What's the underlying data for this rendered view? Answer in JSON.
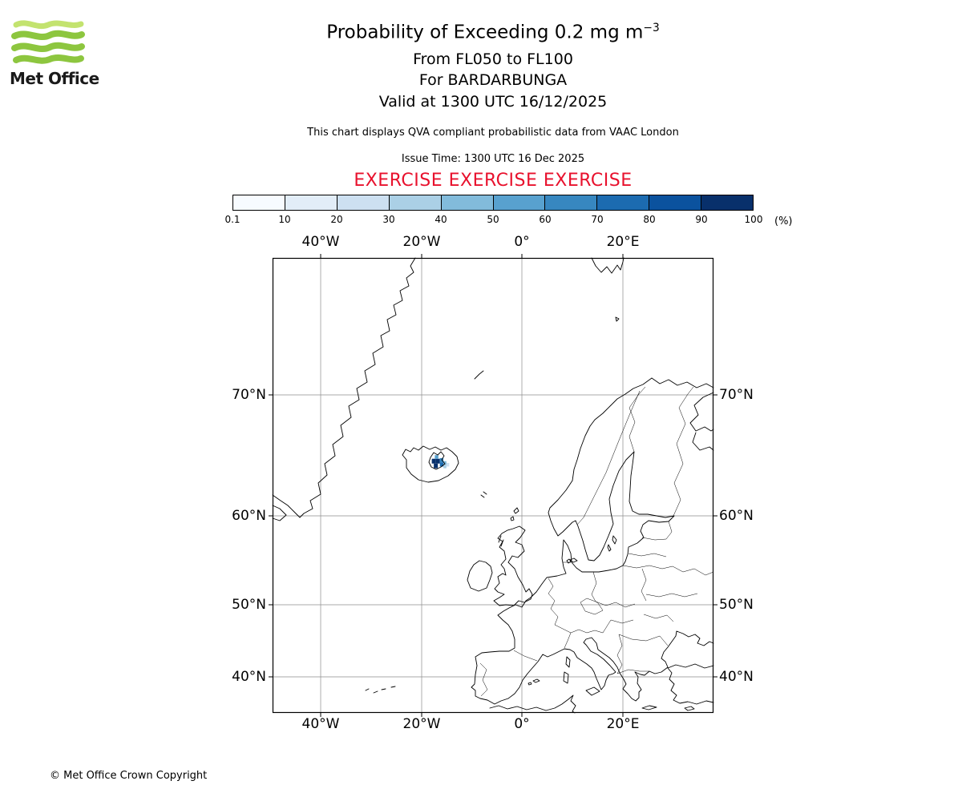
{
  "colors": {
    "logo_green": "#8dc63f",
    "logo_green_light": "#c3e36f",
    "exercise_red": "#e8112d",
    "coastline": "#000000",
    "grid": "#8c8c8c"
  },
  "logo": {
    "text": "Met Office"
  },
  "header": {
    "title_main": "Probability of Exceeding 0.2 mg m",
    "title_sup": "−3",
    "line_flight_levels": "From FL050 to FL100",
    "line_volcano": "For BARDARBUNGA",
    "line_valid": "Valid at 1300 UTC 16/12/2025",
    "qva_note": "This chart displays QVA compliant probabilistic data from VAAC London",
    "issue_time": "Issue Time: 1300 UTC 16 Dec 2025",
    "exercise": "EXERCISE EXERCISE EXERCISE"
  },
  "colorbar": {
    "tick_labels": [
      "0.1",
      "10",
      "20",
      "30",
      "40",
      "50",
      "60",
      "70",
      "80",
      "90",
      "100"
    ],
    "unit_label": "(%)",
    "colors": [
      "#f7fbff",
      "#e2edf8",
      "#cde0f1",
      "#abd0e6",
      "#82bbdb",
      "#58a1cf",
      "#3787c0",
      "#1c6bb0",
      "#0b529e",
      "#08306b"
    ]
  },
  "map": {
    "x_ticks": [
      "40°W",
      "20°W",
      "0°",
      "20°E"
    ],
    "y_ticks": [
      "70°N",
      "60°N",
      "50°N",
      "40°N"
    ]
  },
  "footer": {
    "copyright": "© Met Office Crown Copyright"
  },
  "chart_data": {
    "type": "heatmap",
    "title": "Probability of Exceeding 0.2 mg m⁻³",
    "subtitle": [
      "From FL050 to FL100",
      "For BARDARBUNGA",
      "Valid at 1300 UTC 16/12/2025"
    ],
    "source_note": "QVA compliant probabilistic data from VAAC London",
    "issue_time": "1300 UTC 16 Dec 2025",
    "volcano": "BARDARBUNGA",
    "projection": "mercator",
    "map_extent": {
      "lon_min": -49.5,
      "lon_max": 38.0,
      "lat_min": 34.3,
      "lat_max": 77.45
    },
    "x_ticks_deg": [
      -40,
      -20,
      0,
      20
    ],
    "y_ticks_deg": [
      70,
      60,
      50,
      40
    ],
    "colorbar": {
      "unit": "%",
      "bin_edges": [
        0.1,
        10,
        20,
        30,
        40,
        50,
        60,
        70,
        80,
        90,
        100
      ]
    },
    "ash_probability_cells": [
      {
        "lon": -17.9,
        "lat": 64.8,
        "dlon": 0.8,
        "dlat": 0.4,
        "level": 90
      },
      {
        "lon": -17.1,
        "lat": 64.8,
        "dlon": 0.8,
        "dlat": 0.4,
        "level": 90
      },
      {
        "lon": -17.5,
        "lat": 64.4,
        "dlon": 0.8,
        "dlat": 0.4,
        "level": 90
      },
      {
        "lon": -17.3,
        "lat": 65.2,
        "dlon": 0.7,
        "dlat": 0.3,
        "level": 50
      },
      {
        "lon": -16.3,
        "lat": 64.9,
        "dlon": 0.7,
        "dlat": 0.35,
        "level": 60
      },
      {
        "lon": -16.3,
        "lat": 64.55,
        "dlon": 0.7,
        "dlat": 0.35,
        "level": 70
      },
      {
        "lon": -15.6,
        "lat": 64.7,
        "dlon": 0.6,
        "dlat": 0.3,
        "level": 40
      },
      {
        "lon": -15.6,
        "lat": 64.4,
        "dlon": 0.6,
        "dlat": 0.3,
        "level": 30
      },
      {
        "lon": -15.0,
        "lat": 64.55,
        "dlon": 0.55,
        "dlat": 0.3,
        "level": 20
      }
    ]
  }
}
